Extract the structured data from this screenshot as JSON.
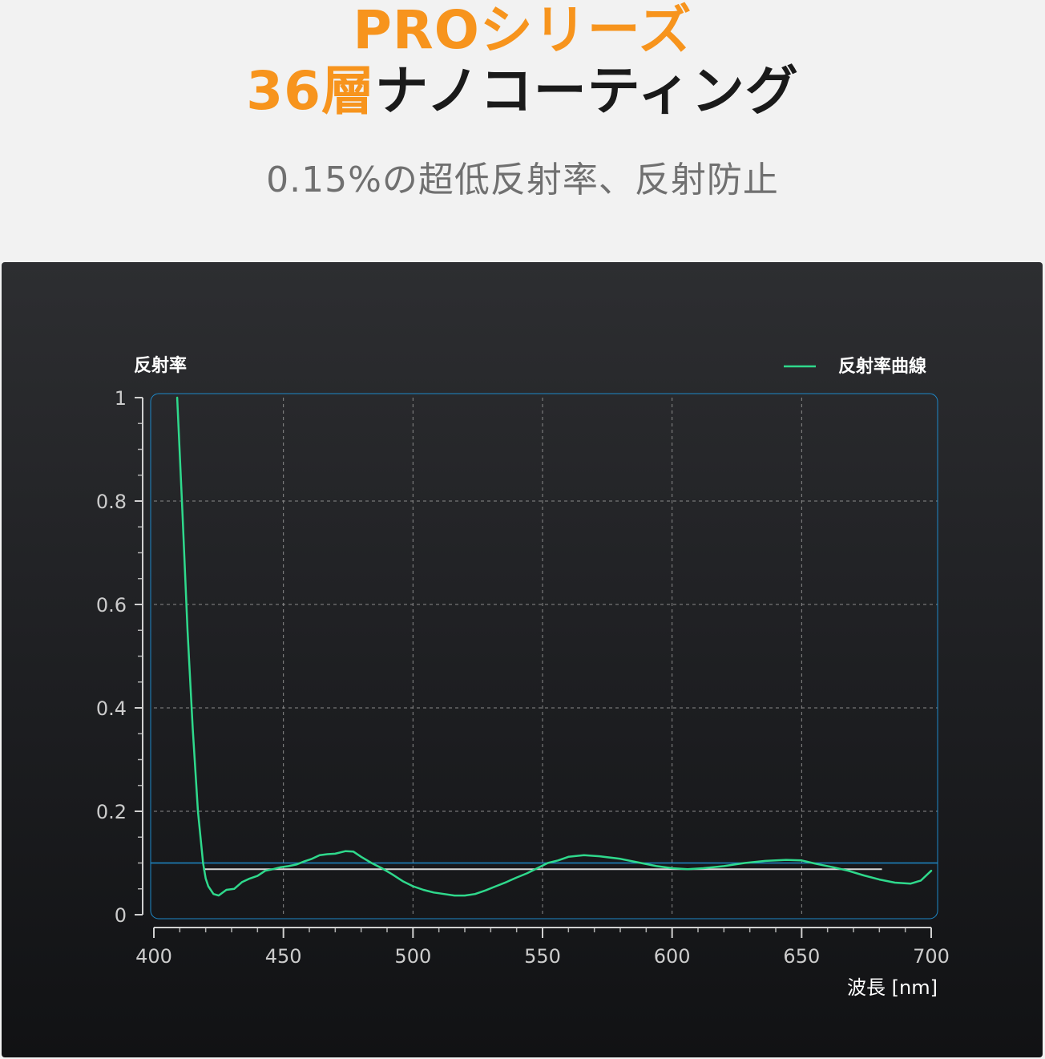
{
  "header": {
    "line1": "PROシリーズ",
    "line2_accent": "36層",
    "line2_rest": "ナノコーティング",
    "subtitle": "0.15%の超低反射率、反射防止"
  },
  "colors": {
    "accent": "#f7941d",
    "curve": "#2fd98c",
    "reference_line": "#1e88c8",
    "average_line": "#d8d8d8",
    "axis_text": "#cccccc"
  },
  "chart_data": {
    "type": "line",
    "ylabel": "反射率",
    "xlabel": "波長 [nm]",
    "xlim": [
      400,
      700
    ],
    "ylim": [
      0,
      1
    ],
    "x_ticks": [
      400,
      450,
      500,
      550,
      600,
      650,
      700
    ],
    "x_tick_labels": [
      "400",
      "450",
      "500",
      "550",
      "600",
      "650",
      "700"
    ],
    "y_ticks": [
      0,
      0.2,
      0.4,
      0.6,
      0.8,
      1
    ],
    "y_tick_labels": [
      "0",
      "0.2",
      "0.4",
      "0.6",
      "0.8",
      "1"
    ],
    "grid": true,
    "legend_position": "top-right",
    "reference_line_y": 0.1,
    "average_line": {
      "x_start": 419,
      "x_end": 681,
      "y": 0.088
    },
    "series": [
      {
        "name": "反射率曲線",
        "x": [
          409,
          411,
          413,
          415,
          417,
          419,
          420,
          421,
          423,
          425,
          428,
          431,
          434,
          437,
          440,
          443,
          446,
          449,
          452,
          455,
          458,
          461,
          464,
          467,
          470,
          474,
          477,
          480,
          484,
          488,
          492,
          496,
          500,
          504,
          508,
          512,
          516,
          520,
          524,
          528,
          532,
          536,
          540,
          544,
          548,
          552,
          556,
          560,
          566,
          572,
          580,
          588,
          594,
          600,
          606,
          612,
          620,
          628,
          636,
          644,
          650,
          656,
          662,
          668,
          674,
          680,
          686,
          692,
          696,
          700
        ],
        "y": [
          1.0,
          0.78,
          0.55,
          0.36,
          0.2,
          0.1,
          0.07,
          0.055,
          0.04,
          0.037,
          0.048,
          0.05,
          0.063,
          0.07,
          0.075,
          0.085,
          0.088,
          0.092,
          0.094,
          0.097,
          0.103,
          0.108,
          0.115,
          0.117,
          0.118,
          0.123,
          0.122,
          0.112,
          0.1,
          0.09,
          0.078,
          0.065,
          0.055,
          0.048,
          0.043,
          0.04,
          0.037,
          0.037,
          0.04,
          0.047,
          0.055,
          0.063,
          0.072,
          0.08,
          0.09,
          0.1,
          0.105,
          0.112,
          0.115,
          0.113,
          0.108,
          0.1,
          0.094,
          0.09,
          0.088,
          0.09,
          0.094,
          0.1,
          0.104,
          0.106,
          0.105,
          0.098,
          0.092,
          0.085,
          0.076,
          0.068,
          0.062,
          0.06,
          0.066,
          0.085
        ]
      }
    ]
  }
}
